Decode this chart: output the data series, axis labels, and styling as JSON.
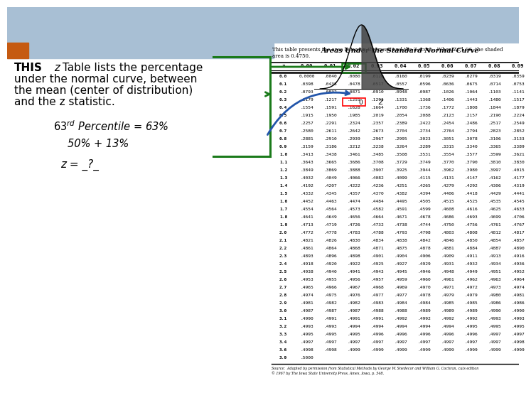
{
  "bg_color": "#ffffff",
  "header_bar_color": "#a8bfd4",
  "orange_bar_color": "#c55a11",
  "green_color": "#1a7a1a",
  "blue_color": "#2255aa",
  "table_title": "Areas Under the Standard Normal Curve",
  "table_header": [
    "z",
    "0.00",
    "0.01",
    "0.02",
    "0.03",
    "0.04",
    "0.05",
    "0.06",
    "0.07",
    "0.08",
    "0.09"
  ],
  "table_rows": [
    [
      "0.0",
      "0.0000",
      ".0040",
      ".0080",
      ".0120",
      ".0160",
      ".0199",
      ".0239",
      ".0279",
      ".0319",
      ".0359"
    ],
    [
      "0.1",
      ".0398",
      ".0438",
      ".0478",
      ".0517",
      ".0557",
      ".0596",
      ".0636",
      ".0675",
      ".0714",
      ".0753"
    ],
    [
      "0.2",
      ".0793",
      ".0832",
      ".0871",
      ".0910",
      ".0948",
      ".0987",
      ".1026",
      ".1064",
      ".1103",
      ".1141"
    ],
    [
      "0.3",
      ".1179",
      ".1217",
      ".1255",
      ".1293",
      ".1331",
      ".1368",
      ".1406",
      ".1443",
      ".1480",
      ".1517"
    ],
    [
      "0.4",
      ".1554",
      ".1591",
      ".1628",
      ".1664",
      ".1700",
      ".1736",
      ".1772",
      ".1808",
      ".1844",
      ".1879"
    ],
    [
      "0.5",
      ".1915",
      ".1950",
      ".1985",
      ".2019",
      ".2054",
      ".2088",
      ".2123",
      ".2157",
      ".2190",
      ".2224"
    ],
    [
      "0.6",
      ".2257",
      ".2291",
      ".2324",
      ".2357",
      ".2389",
      ".2422",
      ".2454",
      ".2486",
      ".2517",
      ".2549"
    ],
    [
      "0.7",
      ".2580",
      ".2611",
      ".2642",
      ".2673",
      ".2704",
      ".2734",
      ".2764",
      ".2794",
      ".2823",
      ".2852"
    ],
    [
      "0.8",
      ".2881",
      ".2910",
      ".2939",
      ".2967",
      ".2995",
      ".3023",
      ".3051",
      ".3078",
      ".3106",
      ".3133"
    ],
    [
      "0.9",
      ".3159",
      ".3186",
      ".3212",
      ".3238",
      ".3264",
      ".3289",
      ".3315",
      ".3340",
      ".3365",
      ".3389"
    ],
    [
      "1.0",
      ".3413",
      ".3438",
      ".3461",
      ".3485",
      ".3508",
      ".3531",
      ".3554",
      ".3577",
      ".3599",
      ".3621"
    ],
    [
      "1.1",
      ".3643",
      ".3665",
      ".3686",
      ".3708",
      ".3729",
      ".3749",
      ".3770",
      ".3790",
      ".3810",
      ".3830"
    ],
    [
      "1.2",
      ".3849",
      ".3869",
      ".3888",
      ".3907",
      ".3925",
      ".3944",
      ".3962",
      ".3980",
      ".3997",
      ".4015"
    ],
    [
      "1.3",
      ".4032",
      ".4049",
      ".4066",
      ".4082",
      ".4099",
      ".4115",
      ".4131",
      ".4147",
      ".4162",
      ".4177"
    ],
    [
      "1.4",
      ".4192",
      ".4207",
      ".4222",
      ".4236",
      ".4251",
      ".4265",
      ".4279",
      ".4292",
      ".4306",
      ".4319"
    ],
    [
      "1.5",
      ".4332",
      ".4345",
      ".4357",
      ".4370",
      ".4382",
      ".4394",
      ".4406",
      ".4418",
      ".4429",
      ".4441"
    ],
    [
      "1.6",
      ".4452",
      ".4463",
      ".4474",
      ".4484",
      ".4495",
      ".4505",
      ".4515",
      ".4525",
      ".4535",
      ".4545"
    ],
    [
      "1.7",
      ".4554",
      ".4564",
      ".4573",
      ".4582",
      ".4591",
      ".4599",
      ".4608",
      ".4616",
      ".4625",
      ".4633"
    ],
    [
      "1.8",
      ".4641",
      ".4649",
      ".4656",
      ".4664",
      ".4671",
      ".4678",
      ".4686",
      ".4693",
      ".4699",
      ".4706"
    ],
    [
      "1.9",
      ".4713",
      ".4719",
      ".4726",
      ".4732",
      ".4738",
      ".4744",
      ".4750",
      ".4756",
      ".4761",
      ".4767"
    ],
    [
      "2.0",
      ".4772",
      ".4778",
      ".4783",
      ".4788",
      ".4793",
      ".4798",
      ".4803",
      ".4808",
      ".4812",
      ".4817"
    ],
    [
      "2.1",
      ".4821",
      ".4826",
      ".4830",
      ".4834",
      ".4838",
      ".4842",
      ".4846",
      ".4850",
      ".4854",
      ".4857"
    ],
    [
      "2.2",
      ".4861",
      ".4864",
      ".4868",
      ".4871",
      ".4875",
      ".4878",
      ".4881",
      ".4884",
      ".4887",
      ".4890"
    ],
    [
      "2.3",
      ".4893",
      ".4896",
      ".4898",
      ".4901",
      ".4904",
      ".4906",
      ".4909",
      ".4911",
      ".4913",
      ".4916"
    ],
    [
      "2.4",
      ".4918",
      ".4920",
      ".4922",
      ".4925",
      ".4927",
      ".4929",
      ".4931",
      ".4932",
      ".4934",
      ".4936"
    ],
    [
      "2.5",
      ".4938",
      ".4940",
      ".4941",
      ".4943",
      ".4945",
      ".4946",
      ".4948",
      ".4949",
      ".4951",
      ".4952"
    ],
    [
      "2.6",
      ".4953",
      ".4955",
      ".4956",
      ".4957",
      ".4959",
      ".4960",
      ".4961",
      ".4962",
      ".4963",
      ".4964"
    ],
    [
      "2.7",
      ".4965",
      ".4966",
      ".4967",
      ".4968",
      ".4969",
      ".4970",
      ".4971",
      ".4972",
      ".4973",
      ".4974"
    ],
    [
      "2.8",
      ".4974",
      ".4975",
      ".4976",
      ".4977",
      ".4977",
      ".4978",
      ".4979",
      ".4979",
      ".4980",
      ".4981"
    ],
    [
      "2.9",
      ".4981",
      ".4982",
      ".4982",
      ".4983",
      ".4984",
      ".4984",
      ".4985",
      ".4985",
      ".4986",
      ".4986"
    ],
    [
      "3.0",
      ".4987",
      ".4987",
      ".4987",
      ".4988",
      ".4988",
      ".4989",
      ".4989",
      ".4989",
      ".4990",
      ".4990"
    ],
    [
      "3.1",
      ".4990",
      ".4991",
      ".4991",
      ".4991",
      ".4992",
      ".4992",
      ".4992",
      ".4992",
      ".4993",
      ".4993"
    ],
    [
      "3.2",
      ".4993",
      ".4993",
      ".4994",
      ".4994",
      ".4994",
      ".4994",
      ".4994",
      ".4995",
      ".4995",
      ".4995"
    ],
    [
      "3.3",
      ".4995",
      ".4995",
      ".4995",
      ".4996",
      ".4996",
      ".4996",
      ".4996",
      ".4996",
      ".4997",
      ".4997"
    ],
    [
      "3.4",
      ".4997",
      ".4997",
      ".4997",
      ".4997",
      ".4997",
      ".4997",
      ".4997",
      ".4997",
      ".4997",
      ".4998"
    ],
    [
      "3.6",
      ".4998",
      ".4998",
      ".4999",
      ".4999",
      ".4999",
      ".4999",
      ".4999",
      ".4999",
      ".4999",
      ".4999"
    ],
    [
      "3.9",
      ".5000",
      "",
      "",
      "",
      "",
      "",
      "",
      "",
      "",
      ""
    ]
  ],
  "highlight_cell_row": 3,
  "highlight_cell_col": 3,
  "source_text": "Source:  Adapted by permission from Statistical Methods by George W. Snedecor and William G. Cochran, cuts edition\n© 1967 by The Iowa State University Press, Ames, Iowa, p. 548.",
  "normal_curve_caption": "This table presents the area between the mean and the Z score.  When Z=1.96, the shaded\narea is 0.4750.",
  "text_line1_bold": "THIS",
  "text_line1_italic": " z",
  "text_line1_rest": " Table lists the percentage",
  "text_line2": "under the normal curve, between",
  "text_line3": "the mean (center of distribution)",
  "text_line4": "and the z statistic.",
  "text_percentile": "63",
  "text_percentile_sup": "rd",
  "text_percentile_rest": " Percentile = 63%",
  "text_50pct": "50% + 13%",
  "text_z": "z = _?_"
}
